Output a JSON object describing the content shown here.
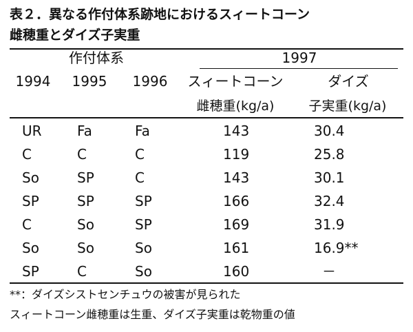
{
  "caption": {
    "line1": "表２．異なる作付体系跡地におけるスィートコーン",
    "line2": "雌穂重とダイズ子実重"
  },
  "header": {
    "cropping_system": "作付体系",
    "year_1997": "1997",
    "years": [
      "1994",
      "1995",
      "1996"
    ],
    "sweetcorn": "スィートコーン",
    "soybean": "ダイズ",
    "sweetcorn_unit": "雌穂重(kg/a)",
    "soybean_unit": "子実重(kg/a)"
  },
  "rows": [
    {
      "y1994": "UR",
      "y1995": "Fa",
      "y1996": "Fa",
      "sweetcorn": "143",
      "soybean": "30.4"
    },
    {
      "y1994": "C",
      "y1995": "C",
      "y1996": "C",
      "sweetcorn": "119",
      "soybean": "25.8"
    },
    {
      "y1994": "So",
      "y1995": "SP",
      "y1996": "C",
      "sweetcorn": "143",
      "soybean": "30.1"
    },
    {
      "y1994": "SP",
      "y1995": "SP",
      "y1996": "SP",
      "sweetcorn": "166",
      "soybean": "32.4"
    },
    {
      "y1994": "C",
      "y1995": "So",
      "y1996": "SP",
      "sweetcorn": "169",
      "soybean": "31.9"
    },
    {
      "y1994": "So",
      "y1995": "So",
      "y1996": "So",
      "sweetcorn": "161",
      "soybean": "16.9**"
    },
    {
      "y1994": "SP",
      "y1995": "C",
      "y1996": "So",
      "sweetcorn": "160",
      "soybean": "－"
    }
  ],
  "notes": {
    "note1": "**：ダイズシストセンチュウの被害が見られた",
    "note2": "スィートコーン雌穂重は生重、ダイズ子実重は乾物重の値"
  }
}
